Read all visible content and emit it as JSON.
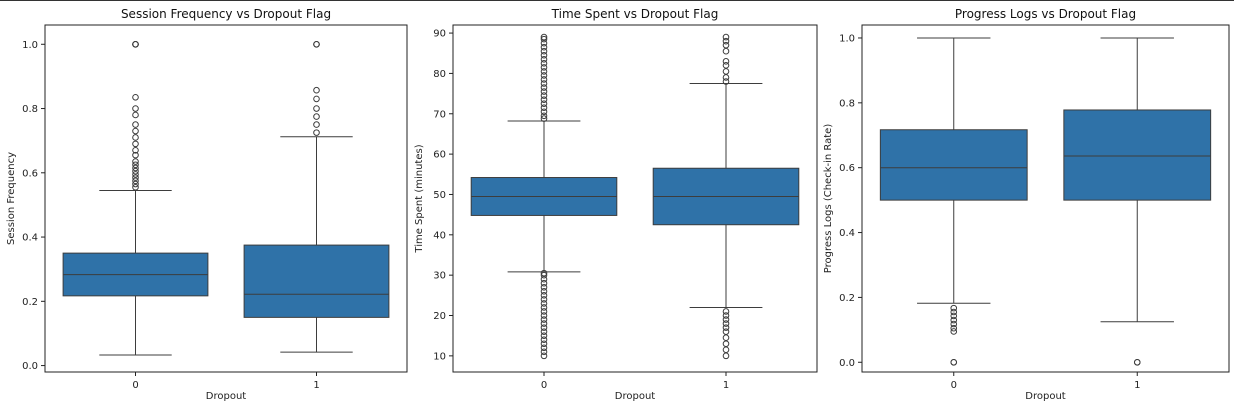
{
  "colors": {
    "box_fill": "#2f72a8",
    "line": "#3d3d3d",
    "frame": "#222222"
  },
  "chart_data": [
    {
      "type": "box",
      "title": "Session Frequency vs Dropout Flag",
      "xlabel": "Dropout",
      "ylabel": "Session Frequency",
      "categories": [
        "0",
        "1"
      ],
      "ylim": [
        -0.02,
        1.06
      ],
      "yticks": [
        0.0,
        0.2,
        0.4,
        0.6,
        0.8,
        1.0
      ],
      "ytick_labels": [
        "0.0",
        "0.2",
        "0.4",
        "0.6",
        "0.8",
        "1.0"
      ],
      "boxes": [
        {
          "category": "0",
          "whisker_low": 0.033,
          "q1": 0.217,
          "median": 0.283,
          "q3": 0.35,
          "whisker_high": 0.545,
          "fliers": [
            0.555,
            0.565,
            0.575,
            0.585,
            0.595,
            0.605,
            0.615,
            0.625,
            0.635,
            0.655,
            0.67,
            0.69,
            0.71,
            0.73,
            0.75,
            0.78,
            0.8,
            0.835,
            1.0,
            1.0,
            1.0
          ]
        },
        {
          "category": "1",
          "whisker_low": 0.042,
          "q1": 0.15,
          "median": 0.222,
          "q3": 0.375,
          "whisker_high": 0.712,
          "fliers": [
            0.725,
            0.75,
            0.775,
            0.8,
            0.83,
            0.857,
            1.0,
            1.0
          ]
        }
      ]
    },
    {
      "type": "box",
      "title": "Time Spent vs Dropout Flag",
      "xlabel": "Dropout",
      "ylabel": "Time Spent (minutes)",
      "categories": [
        "0",
        "1"
      ],
      "ylim": [
        6.0,
        92.0
      ],
      "yticks": [
        10,
        20,
        30,
        40,
        50,
        60,
        70,
        80,
        90
      ],
      "ytick_labels": [
        "10",
        "20",
        "30",
        "40",
        "50",
        "60",
        "70",
        "80",
        "90"
      ],
      "boxes": [
        {
          "category": "0",
          "whisker_low": 30.8,
          "q1": 44.8,
          "median": 49.5,
          "q3": 54.2,
          "whisker_high": 68.2,
          "fliers": [
            10.0,
            11.0,
            12.0,
            13.0,
            14.0,
            15.0,
            16.0,
            17.0,
            18.0,
            19.0,
            20.0,
            21.0,
            22.0,
            23.0,
            24.0,
            25.0,
            26.0,
            27.0,
            28.0,
            29.0,
            30.0,
            30.5,
            68.8,
            69.5,
            70.5,
            71.5,
            72.5,
            73.5,
            74.5,
            75.5,
            76.5,
            77.5,
            78.5,
            79.5,
            80.5,
            81.5,
            82.5,
            83.5,
            84.5,
            85.5,
            86.5,
            87.5,
            88.5,
            89.0
          ]
        },
        {
          "category": "1",
          "whisker_low": 22.0,
          "q1": 42.5,
          "median": 49.5,
          "q3": 56.5,
          "whisker_high": 77.5,
          "fliers": [
            10.0,
            11.5,
            13.0,
            14.5,
            16.0,
            17.0,
            18.0,
            19.0,
            20.0,
            21.0,
            78.0,
            79.0,
            80.5,
            82.0,
            83.0,
            85.5,
            87.0,
            88.0,
            89.0
          ]
        }
      ]
    },
    {
      "type": "box",
      "title": "Progress Logs vs Dropout Flag",
      "xlabel": "Dropout",
      "ylabel": "Progress Logs (Check-in Rate)",
      "categories": [
        "0",
        "1"
      ],
      "ylim": [
        -0.03,
        1.04
      ],
      "yticks": [
        0.0,
        0.2,
        0.4,
        0.6,
        0.8,
        1.0
      ],
      "ytick_labels": [
        "0.0",
        "0.2",
        "0.4",
        "0.6",
        "0.8",
        "1.0"
      ],
      "boxes": [
        {
          "category": "0",
          "whisker_low": 0.182,
          "q1": 0.5,
          "median": 0.6,
          "q3": 0.717,
          "whisker_high": 1.0,
          "fliers": [
            0.0,
            0.0,
            0.095,
            0.105,
            0.118,
            0.13,
            0.143,
            0.155,
            0.167
          ]
        },
        {
          "category": "1",
          "whisker_low": 0.125,
          "q1": 0.5,
          "median": 0.636,
          "q3": 0.778,
          "whisker_high": 1.0,
          "fliers": [
            0.0,
            0.0
          ]
        }
      ]
    }
  ]
}
